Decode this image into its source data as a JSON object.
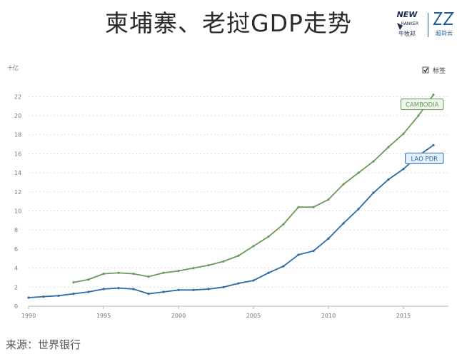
{
  "header": {
    "title": "柬埔寨、老挝GDP走势"
  },
  "logos": {
    "newranker_text": "NEW RANKER",
    "newranker_cn": "牛牧邦",
    "z_cn": "超尚云"
  },
  "footer": {
    "source": "来源：世界银行"
  },
  "legend": {
    "checkbox_label": "标签",
    "checked": true
  },
  "colors": {
    "cambodia": "#6b9a5a",
    "lao": "#2d6aa6",
    "grid": "#dcdcdc"
  },
  "chart_data": {
    "type": "line",
    "ylabel": "十亿",
    "ylim": [
      0,
      23
    ],
    "yticks": [
      0,
      2,
      4,
      6,
      8,
      10,
      12,
      14,
      16,
      18,
      20,
      22
    ],
    "xlim": [
      1990,
      2018
    ],
    "xticks": [
      1990,
      1995,
      2000,
      2005,
      2010,
      2015
    ],
    "grid": true,
    "series": [
      {
        "name": "CAMBODIA",
        "x": [
          1993,
          1994,
          1995,
          1996,
          1997,
          1998,
          1999,
          2000,
          2001,
          2002,
          2003,
          2004,
          2005,
          2006,
          2007,
          2008,
          2009,
          2010,
          2011,
          2012,
          2013,
          2014,
          2015,
          2016,
          2017
        ],
        "values": [
          2.5,
          2.8,
          3.4,
          3.5,
          3.4,
          3.1,
          3.5,
          3.7,
          4.0,
          4.3,
          4.7,
          5.3,
          6.3,
          7.3,
          8.6,
          10.4,
          10.4,
          11.2,
          12.8,
          14.0,
          15.2,
          16.7,
          18.1,
          20.0,
          22.2
        ]
      },
      {
        "name": "LAO PDR",
        "x": [
          1990,
          1991,
          1992,
          1993,
          1994,
          1995,
          1996,
          1997,
          1998,
          1999,
          2000,
          2001,
          2002,
          2003,
          2004,
          2005,
          2006,
          2007,
          2008,
          2009,
          2010,
          2011,
          2012,
          2013,
          2014,
          2015,
          2016,
          2017
        ],
        "values": [
          0.9,
          1.0,
          1.1,
          1.3,
          1.5,
          1.8,
          1.9,
          1.8,
          1.3,
          1.5,
          1.7,
          1.7,
          1.8,
          2.0,
          2.4,
          2.7,
          3.5,
          4.2,
          5.4,
          5.8,
          7.1,
          8.7,
          10.2,
          11.9,
          13.3,
          14.4,
          15.8,
          16.9
        ]
      }
    ]
  }
}
